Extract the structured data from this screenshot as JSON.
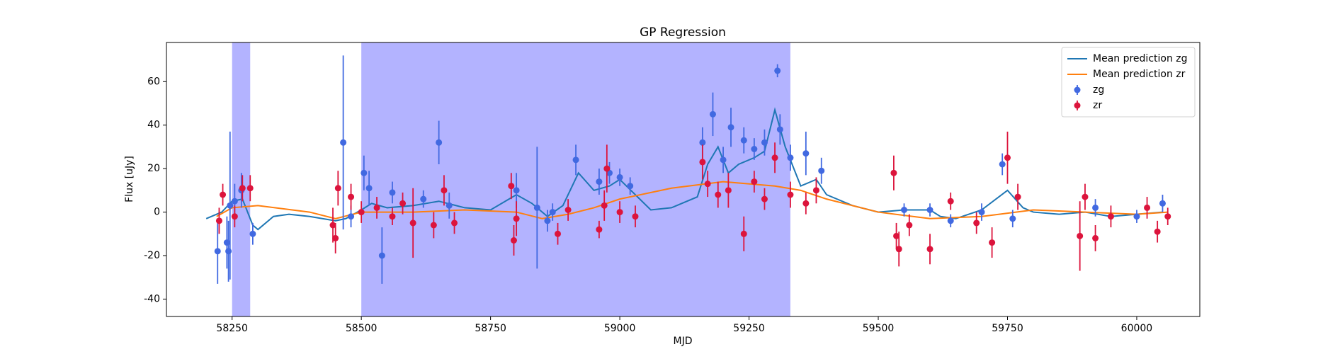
{
  "chart_data": {
    "type": "errorbar",
    "title": "GP Regression",
    "xlabel": "MJD",
    "ylabel": "Flux [uJy]",
    "xlim": [
      58123,
      60122
    ],
    "ylim": [
      -48,
      78
    ],
    "xticks": [
      58250,
      58500,
      58750,
      59000,
      59250,
      59500,
      59750,
      60000
    ],
    "yticks": [
      -40,
      -20,
      0,
      20,
      40,
      60
    ],
    "legend": "upper right",
    "spans": [
      [
        58250,
        58285
      ],
      [
        58500,
        59330
      ]
    ],
    "span_color": "#a6a6ff",
    "series": [
      {
        "name": "Mean prediction zg",
        "kind": "line",
        "color": "#1f77b4",
        "x": [
          58200,
          58230,
          58250,
          58270,
          58290,
          58300,
          58330,
          58360,
          58400,
          58450,
          58470,
          58500,
          58520,
          58550,
          58600,
          58650,
          58700,
          58750,
          58800,
          58830,
          58860,
          58890,
          58920,
          58950,
          58980,
          59000,
          59030,
          59060,
          59100,
          59150,
          59170,
          59190,
          59210,
          59230,
          59260,
          59280,
          59300,
          59320,
          59350,
          59380,
          59400,
          59450,
          59500,
          59550,
          59600,
          59620,
          59650,
          59700,
          59750,
          59780,
          59800,
          59850,
          59900,
          59950,
          60000,
          60050
        ],
        "values": [
          -3,
          0,
          5,
          6,
          -6,
          -8,
          -2,
          -1,
          -2,
          -4,
          -3,
          1,
          4,
          2,
          3,
          5,
          2,
          1,
          8,
          4,
          -2,
          3,
          18,
          10,
          12,
          15,
          8,
          1,
          2,
          7,
          22,
          30,
          18,
          22,
          25,
          28,
          47,
          30,
          12,
          15,
          8,
          3,
          0,
          1,
          1,
          -2,
          -3,
          1,
          10,
          2,
          0,
          -1,
          0,
          -2,
          -1,
          0
        ]
      },
      {
        "name": "Mean prediction zr",
        "kind": "line",
        "color": "#ff7f0e",
        "x": [
          58220,
          58250,
          58300,
          58400,
          58450,
          58500,
          58600,
          58700,
          58800,
          58850,
          58900,
          58950,
          59000,
          59100,
          59200,
          59300,
          59350,
          59400,
          59500,
          59600,
          59700,
          59800,
          59900,
          60000,
          60060
        ],
        "values": [
          -2,
          2,
          3,
          0,
          -3,
          0,
          0,
          1,
          0,
          -3,
          -1,
          2,
          6,
          11,
          14,
          12,
          10,
          6,
          0,
          -3,
          -2,
          1,
          0,
          -1,
          0
        ]
      },
      {
        "name": "zg",
        "kind": "points",
        "color": "#4169e1",
        "x": [
          58222,
          58240,
          58243,
          58246,
          58255,
          58268,
          58290,
          58465,
          58480,
          58505,
          58515,
          58540,
          58560,
          58620,
          58650,
          58670,
          58800,
          58840,
          58860,
          58870,
          58915,
          58960,
          58980,
          59000,
          59020,
          59160,
          59180,
          59200,
          59215,
          59240,
          59260,
          59280,
          59305,
          59310,
          59330,
          59360,
          59390,
          59550,
          59600,
          59640,
          59700,
          59740,
          59760,
          59920,
          60000,
          60050
        ],
        "values": [
          -18,
          -14,
          -18,
          3,
          5,
          10,
          -10,
          32,
          -2,
          18,
          11,
          -20,
          9,
          6,
          32,
          3,
          10,
          2,
          -4,
          0,
          24,
          14,
          18,
          16,
          12,
          32,
          45,
          24,
          39,
          33,
          29,
          32,
          65,
          38,
          25,
          27,
          19,
          1,
          1,
          -4,
          0,
          22,
          -3,
          2,
          -2,
          4
        ],
        "errors": [
          15,
          12,
          14,
          34,
          8,
          8,
          5,
          40,
          5,
          8,
          8,
          13,
          5,
          4,
          10,
          6,
          8,
          28,
          5,
          4,
          7,
          6,
          5,
          4,
          4,
          7,
          10,
          6,
          9,
          6,
          5,
          6,
          3,
          7,
          6,
          10,
          6,
          3,
          3,
          3,
          4,
          5,
          4,
          4,
          3,
          4
        ]
      },
      {
        "name": "zr",
        "kind": "points",
        "color": "#dc143c",
        "x": [
          58225,
          58232,
          58255,
          58270,
          58285,
          58445,
          58450,
          58455,
          58480,
          58500,
          58530,
          58560,
          58580,
          58600,
          58640,
          58660,
          58680,
          58790,
          58795,
          58800,
          58880,
          58900,
          58960,
          58970,
          58975,
          59000,
          59030,
          59160,
          59170,
          59190,
          59210,
          59240,
          59260,
          59280,
          59300,
          59330,
          59360,
          59380,
          59530,
          59535,
          59540,
          59560,
          59600,
          59640,
          59690,
          59720,
          59750,
          59770,
          59890,
          59900,
          59920,
          59950,
          60020,
          60040,
          60060
        ],
        "values": [
          -4,
          8,
          -2,
          11,
          11,
          -6,
          -12,
          11,
          7,
          0,
          2,
          -2,
          4,
          -5,
          -6,
          10,
          -5,
          12,
          -13,
          -3,
          -10,
          1,
          -8,
          3,
          20,
          0,
          -2,
          23,
          13,
          8,
          10,
          -10,
          14,
          6,
          25,
          8,
          4,
          10,
          18,
          -11,
          -17,
          -6,
          -17,
          5,
          -5,
          -14,
          25,
          7,
          -11,
          7,
          -12,
          -2,
          2,
          -9,
          -2
        ],
        "errors": [
          6,
          5,
          5,
          6,
          6,
          8,
          7,
          8,
          6,
          5,
          5,
          4,
          5,
          16,
          6,
          7,
          5,
          6,
          7,
          8,
          5,
          5,
          4,
          7,
          11,
          5,
          5,
          8,
          6,
          6,
          8,
          8,
          5,
          5,
          7,
          6,
          5,
          6,
          8,
          6,
          8,
          5,
          7,
          4,
          5,
          7,
          12,
          6,
          16,
          6,
          6,
          5,
          5,
          5,
          4
        ]
      }
    ]
  }
}
